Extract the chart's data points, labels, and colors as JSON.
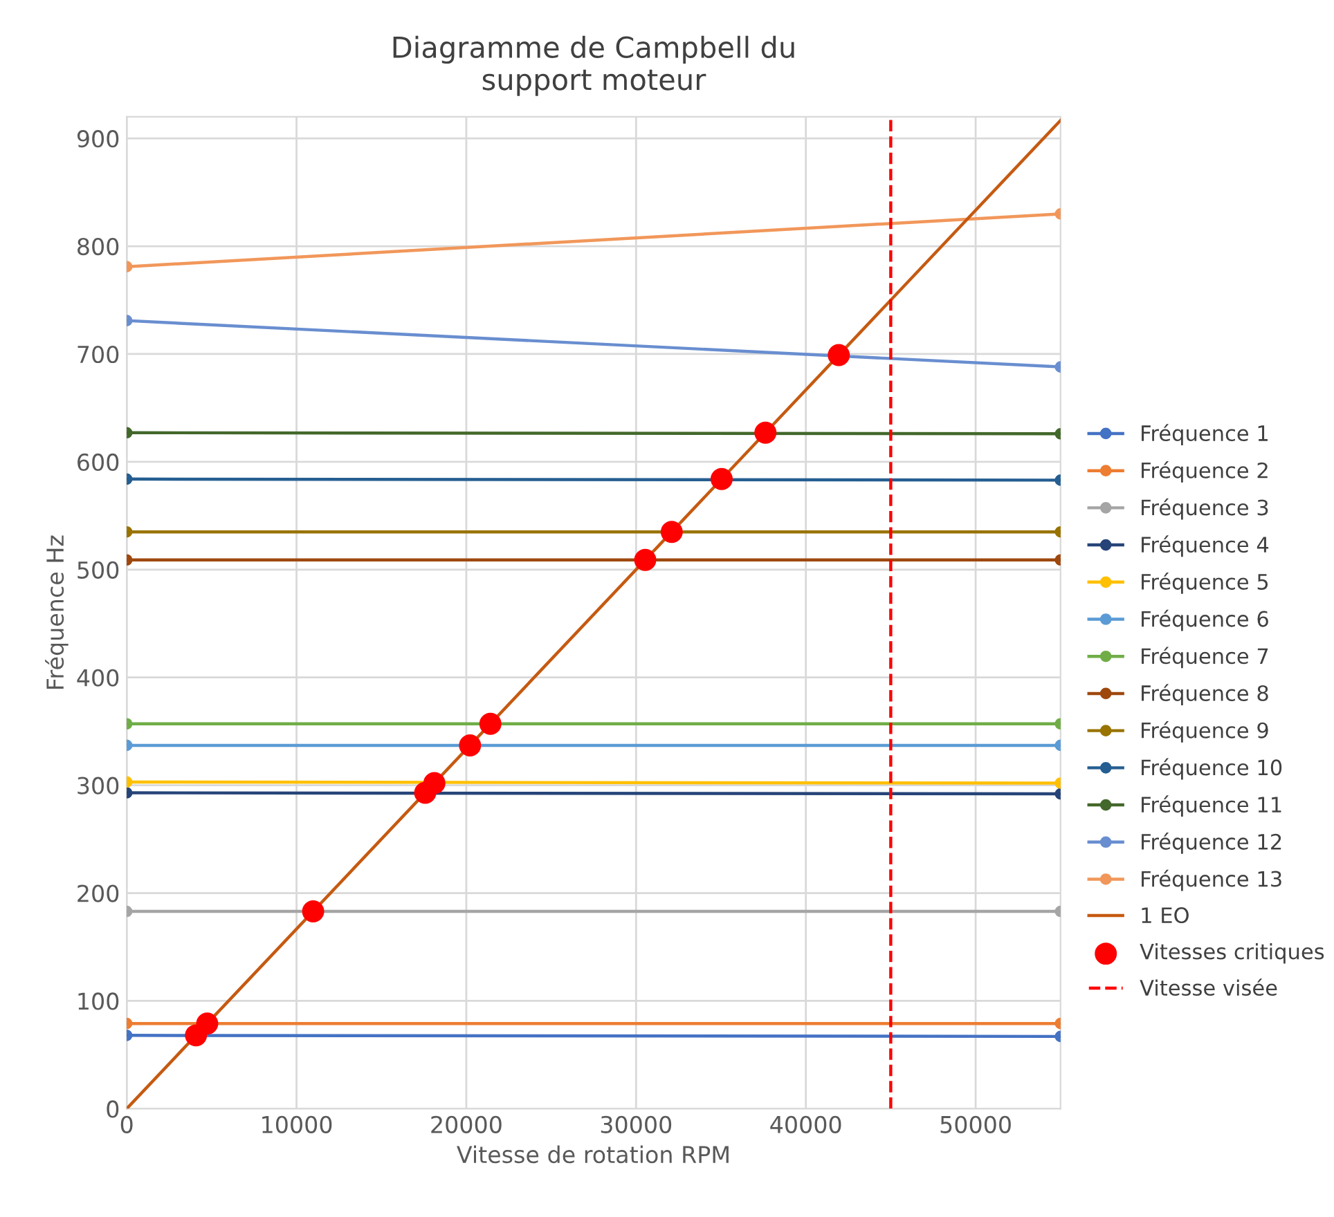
{
  "chart_data": {
    "type": "line",
    "title": "Diagramme de Campbell du\nsupport moteur",
    "xlabel": "Vitesse de rotation RPM",
    "ylabel": "Fréquence Hz",
    "xlim": [
      0,
      55000
    ],
    "xticks": [
      0,
      10000,
      20000,
      30000,
      40000,
      50000
    ],
    "ylim": [
      0,
      920
    ],
    "yticks": [
      0,
      100,
      200,
      300,
      400,
      500,
      600,
      700,
      800,
      900
    ],
    "grid": true,
    "legend": "right",
    "marker": "circle",
    "series": [
      {
        "name": "Fréquence 1",
        "color": "#4472c4",
        "x": [
          0,
          55000
        ],
        "values": [
          68,
          67
        ]
      },
      {
        "name": "Fréquence 2",
        "color": "#ed7d31",
        "x": [
          0,
          55000
        ],
        "values": [
          79,
          79
        ]
      },
      {
        "name": "Fréquence 3",
        "color": "#a5a5a5",
        "x": [
          0,
          55000
        ],
        "values": [
          183,
          183
        ]
      },
      {
        "name": "Fréquence 4",
        "color": "#264478",
        "x": [
          0,
          55000
        ],
        "values": [
          293,
          292
        ]
      },
      {
        "name": "Fréquence 5",
        "color": "#ffc000",
        "x": [
          0,
          55000
        ],
        "values": [
          303,
          302
        ]
      },
      {
        "name": "Fréquence 6",
        "color": "#5b9bd5",
        "x": [
          0,
          55000
        ],
        "values": [
          337,
          337
        ]
      },
      {
        "name": "Fréquence 7",
        "color": "#70ad47",
        "x": [
          0,
          55000
        ],
        "values": [
          357,
          357
        ]
      },
      {
        "name": "Fréquence 8",
        "color": "#9e480e",
        "x": [
          0,
          55000
        ],
        "values": [
          509,
          509
        ]
      },
      {
        "name": "Fréquence 9",
        "color": "#997300",
        "x": [
          0,
          55000
        ],
        "values": [
          535,
          535
        ]
      },
      {
        "name": "Fréquence 10",
        "color": "#255e91",
        "x": [
          0,
          55000
        ],
        "values": [
          584,
          583
        ]
      },
      {
        "name": "Fréquence 11",
        "color": "#43682b",
        "x": [
          0,
          55000
        ],
        "values": [
          627,
          626
        ]
      },
      {
        "name": "Fréquence 12",
        "color": "#698ed0",
        "x": [
          0,
          55000
        ],
        "values": [
          731,
          688
        ]
      },
      {
        "name": "Fréquence 13",
        "color": "#f1975a",
        "x": [
          0,
          55000
        ],
        "values": [
          781,
          830
        ]
      },
      {
        "name": "1 EO",
        "color": "#c55a11",
        "marker": "none",
        "x": [
          0,
          55000
        ],
        "values": [
          0,
          916.7
        ]
      },
      {
        "name": "Vitesses critiques",
        "type": "scatter",
        "color": "#ff0000",
        "x": [
          4080,
          4740,
          10980,
          17580,
          18120,
          20220,
          21420,
          30540,
          32100,
          35040,
          37620,
          41940
        ],
        "values": [
          68,
          79,
          183,
          293,
          302,
          337,
          357,
          509,
          535,
          584,
          627,
          699
        ]
      },
      {
        "name": "Vitesse visée",
        "color": "#ff0000",
        "marker": "none",
        "line_style": "dashed",
        "x": [
          45000,
          45000
        ],
        "values": [
          0,
          920
        ]
      }
    ]
  }
}
